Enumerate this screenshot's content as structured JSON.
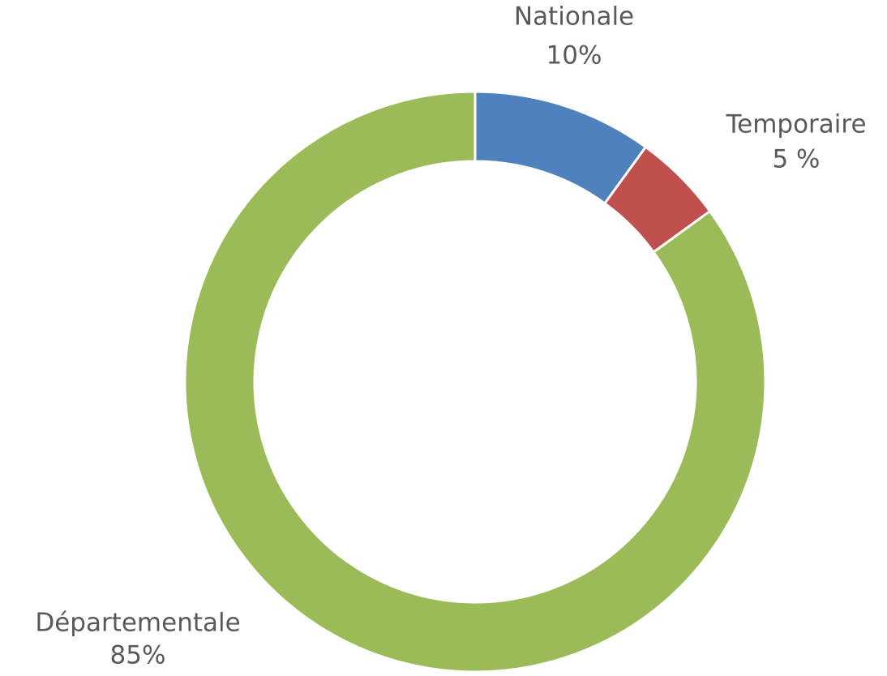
{
  "chart_data": {
    "type": "donut",
    "categories": [
      "Nationale",
      "Temporaire",
      "Départementale"
    ],
    "values": [
      10,
      5,
      85
    ],
    "value_labels": [
      "10%",
      "5 %",
      "85%"
    ],
    "colors": [
      "#4f81bd",
      "#c0504d",
      "#9bbb59"
    ]
  }
}
